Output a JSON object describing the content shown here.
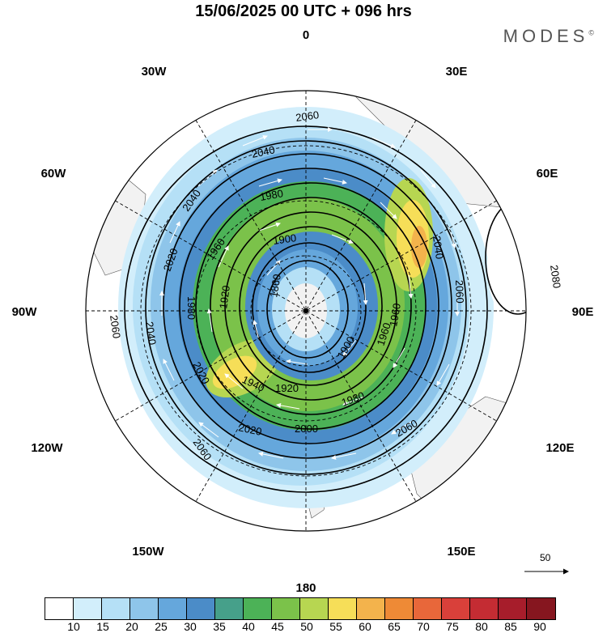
{
  "title": "15/06/2025  00 UTC  + 096 hrs",
  "brand": "MODES",
  "brand_mark": "©",
  "map": {
    "projection": "south-polar-stereographic",
    "lon_labels": {
      "lon0": "0",
      "lon30e": "30E",
      "lon60e": "60E",
      "lon90e": "90E",
      "lon120e": "120E",
      "lon150e": "150E",
      "lon180": "180",
      "lon150w": "150W",
      "lon120w": "120W",
      "lon90w": "90W",
      "lon60w": "60W",
      "lon30w": "30W"
    },
    "contour_labels": {
      "c1": "2060",
      "c2": "2040",
      "c3": "2040",
      "c4": "1980",
      "c5": "2020",
      "c6": "1960",
      "c7": "1900",
      "c8": "1920",
      "c9": "1860",
      "c10": "2040",
      "c11": "2080",
      "c12": "2060",
      "c13": "2060",
      "c14": "2040",
      "c15": "1980",
      "c16": "2020",
      "c17": "1940",
      "c18": "1920",
      "c19": "1960",
      "c20": "1980",
      "c21": "1900",
      "c22": "2000",
      "c23": "2020",
      "c24": "2060",
      "c25": "2060",
      "c26": "1960"
    },
    "vector_scale_label": "50"
  },
  "colorbar": {
    "colors": [
      "#ffffff",
      "#d2eefb",
      "#b5e0f6",
      "#8ec5ea",
      "#65a7dc",
      "#4b8cc8",
      "#46a08a",
      "#4cb257",
      "#7bc24a",
      "#b7d651",
      "#f6de58",
      "#f3b34c",
      "#ee8a36",
      "#e8673a",
      "#d9403a",
      "#c42c33",
      "#a71d2b",
      "#86161f"
    ],
    "ticks": [
      "10",
      "15",
      "20",
      "25",
      "30",
      "35",
      "40",
      "45",
      "50",
      "55",
      "60",
      "65",
      "70",
      "75",
      "80",
      "85",
      "90"
    ]
  }
}
